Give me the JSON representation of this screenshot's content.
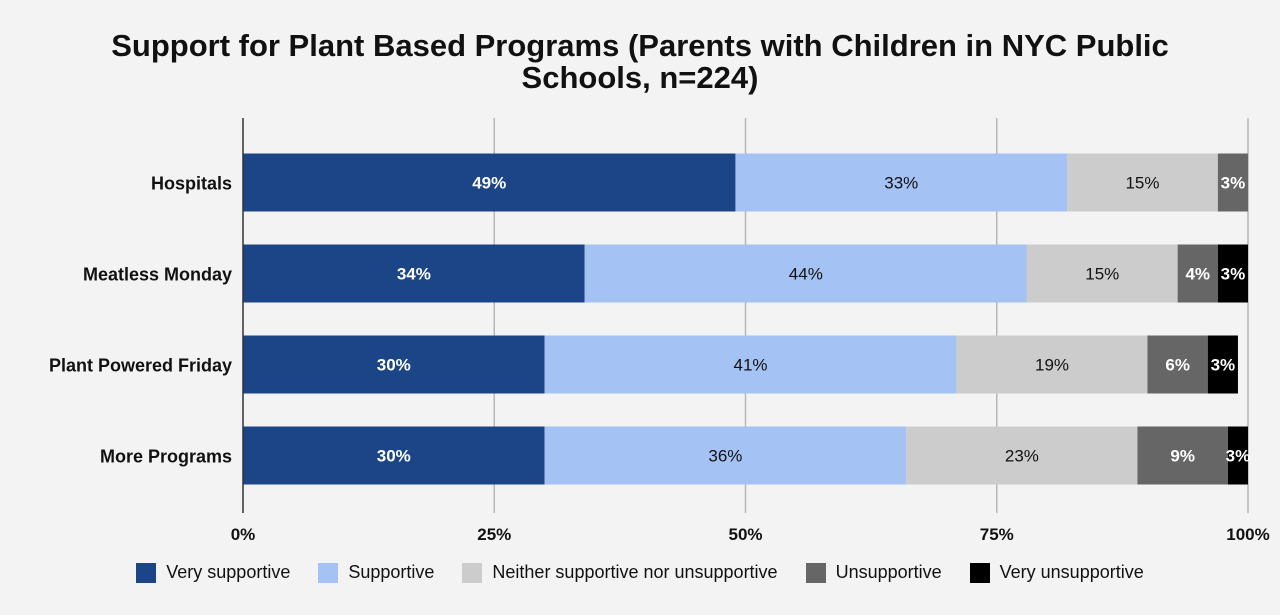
{
  "chart_data": {
    "type": "bar",
    "orientation": "horizontal",
    "stacked": true,
    "title": "Support for Plant Based Programs (Parents with Children in NYC Public Schools, n=224)",
    "title_lines": [
      "Support for Plant Based Programs (Parents with Children in NYC Public",
      "Schools, n=224)"
    ],
    "categories": [
      "Hospitals",
      "Meatless Monday",
      "Plant Powered Friday",
      "More Programs"
    ],
    "series": [
      {
        "name": "Very supportive",
        "color": "#1c4587",
        "label_color": "#ffffff",
        "values": [
          49,
          34,
          30,
          30
        ],
        "labels": [
          "49%",
          "34%",
          "30%",
          "30%"
        ]
      },
      {
        "name": "Supportive",
        "color": "#a4c2f4",
        "label_color": "#111111",
        "values": [
          33,
          44,
          41,
          36
        ],
        "labels": [
          "33%",
          "44%",
          "41%",
          "36%"
        ]
      },
      {
        "name": "Neither supportive nor unsupportive",
        "color": "#cccccc",
        "label_color": "#111111",
        "values": [
          15,
          15,
          19,
          23
        ],
        "labels": [
          "15%",
          "15%",
          "19%",
          "23%"
        ]
      },
      {
        "name": "Unsupportive",
        "color": "#666666",
        "label_color": "#ffffff",
        "values": [
          3,
          4,
          6,
          9
        ],
        "labels": [
          "3%",
          "4%",
          "6%",
          "9%"
        ]
      },
      {
        "name": "Very unsupportive",
        "color": "#000000",
        "label_color": "#ffffff",
        "values": [
          0,
          3,
          3,
          3
        ],
        "labels": [
          "",
          "3%",
          "3%",
          "3%"
        ]
      }
    ],
    "xlim": [
      0,
      100
    ],
    "xticks": [
      0,
      25,
      50,
      75,
      100
    ],
    "xtick_labels": [
      "0%",
      "25%",
      "50%",
      "75%",
      "100%"
    ],
    "xlabel": "",
    "ylabel": "",
    "grid": true,
    "legend_position": "bottom"
  }
}
